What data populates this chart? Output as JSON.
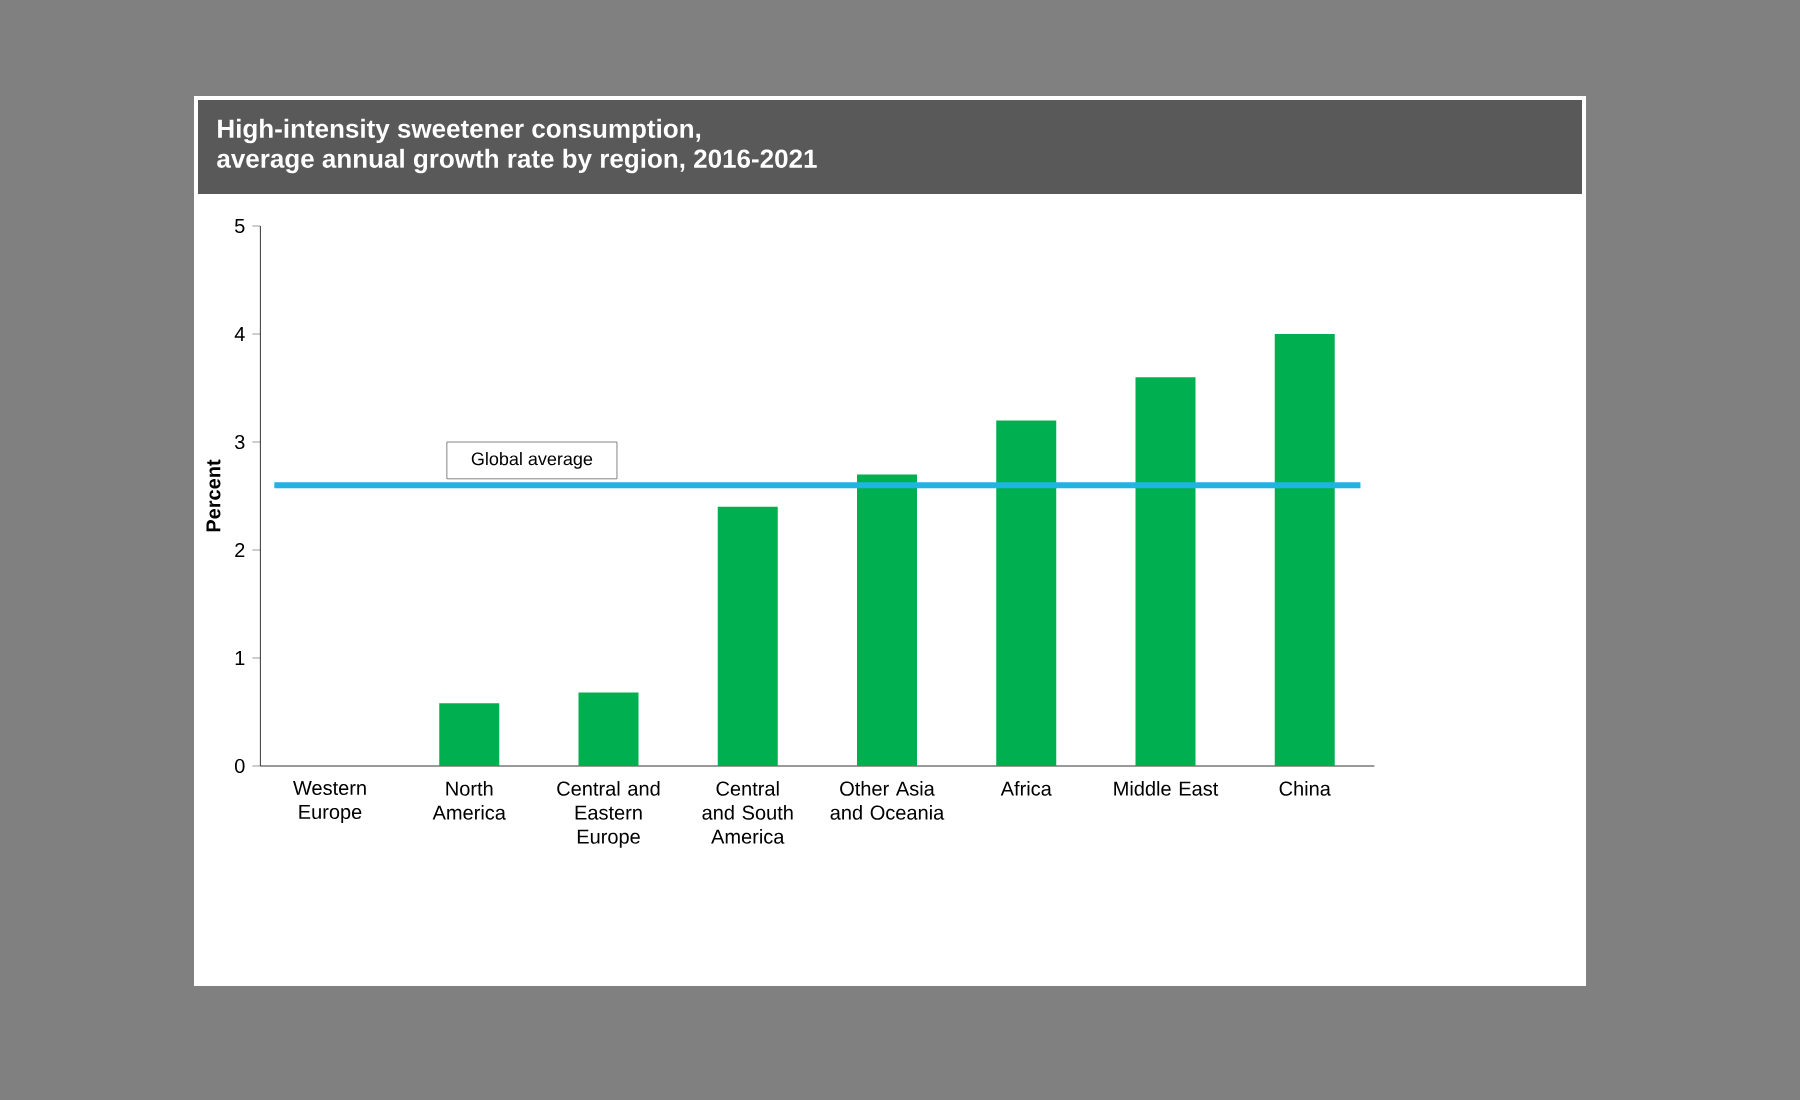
{
  "chart_data": {
    "type": "bar",
    "title": "High-intensity sweetener consumption,\naverage annual growth rate by region, 2016-2021",
    "ylabel": "Percent",
    "categories": [
      "Western Europe",
      "North America",
      "Central and Eastern Europe",
      "Central and South America",
      "Other Asia and Oceania",
      "Africa",
      "Middle East",
      "China"
    ],
    "values": [
      0,
      0.58,
      0.68,
      2.4,
      2.7,
      3.2,
      3.6,
      4.0
    ],
    "color": "#00b050",
    "ylim": [
      0,
      5
    ],
    "yticks": [
      0,
      1,
      2,
      3,
      4,
      5
    ],
    "ref_lines": [
      {
        "axis": "y",
        "value": 2.6,
        "label": "Global average",
        "color": "#1eb4e6"
      }
    ]
  }
}
